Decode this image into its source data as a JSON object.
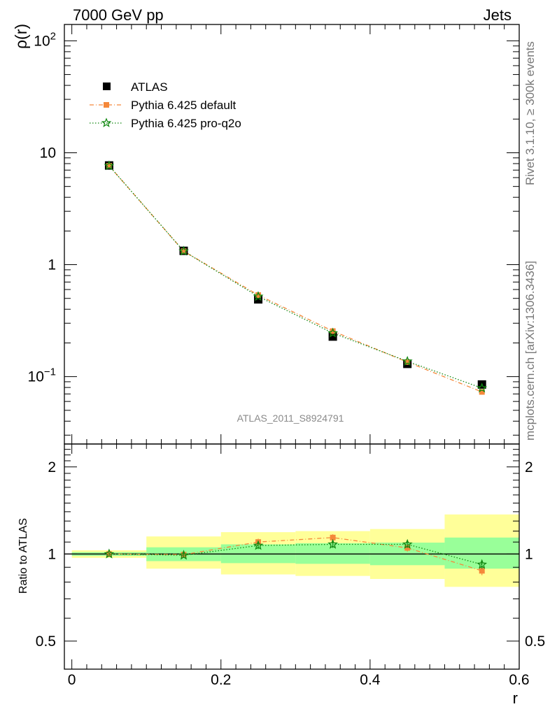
{
  "header": {
    "left_title": "7000 GeV pp",
    "right_title": "Jets"
  },
  "side_labels": {
    "rivet": "Rivet 3.1.10, ≥ 300k events",
    "mcplots": "mcplots.cern.ch [arXiv:1306.3436]"
  },
  "watermark": "ATLAS_2011_S8924791",
  "legend": {
    "items": [
      {
        "label": "ATLAS",
        "marker": "square",
        "color": "#000000"
      },
      {
        "label": "Pythia 6.425 default",
        "marker": "square-dashdot",
        "color": "#f5883a"
      },
      {
        "label": "Pythia 6.425 pro-q2o",
        "marker": "star-dotted",
        "color": "#118811"
      }
    ]
  },
  "axes": {
    "main_ylabel": "ρ(r)",
    "ratio_ylabel": "Ratio to ATLAS",
    "xlabel": "r",
    "main_yticks": [
      {
        "base": "10",
        "exp": "−1"
      },
      {
        "base": "1",
        "exp": ""
      },
      {
        "base": "10",
        "exp": ""
      },
      {
        "base": "10",
        "exp": "2"
      }
    ],
    "ratio_yticks": [
      "0.5",
      "1",
      "2"
    ],
    "xticks": [
      "0",
      "0.2",
      "0.4",
      "0.6"
    ]
  },
  "chart_data": [
    {
      "type": "scatter",
      "panel": "main",
      "title": "",
      "xlabel": "r",
      "ylabel": "ρ(r)",
      "xlim": [
        -0.01,
        0.6
      ],
      "ylim": [
        0.025,
        140
      ],
      "yscale": "log",
      "x": [
        0.05,
        0.15,
        0.25,
        0.35,
        0.45,
        0.55
      ],
      "series": [
        {
          "name": "ATLAS",
          "color": "#000000",
          "values": [
            7.7,
            1.33,
            0.49,
            0.228,
            0.13,
            0.085
          ]
        },
        {
          "name": "Pythia 6.425 default",
          "color": "#f5883a",
          "values": [
            7.65,
            1.32,
            0.535,
            0.255,
            0.135,
            0.073
          ]
        },
        {
          "name": "Pythia 6.425 pro-q2o",
          "color": "#118811",
          "values": [
            7.65,
            1.32,
            0.52,
            0.245,
            0.137,
            0.079
          ]
        }
      ]
    },
    {
      "type": "scatter",
      "panel": "ratio",
      "title": "",
      "xlabel": "r",
      "ylabel": "Ratio to ATLAS",
      "xlim": [
        -0.01,
        0.6
      ],
      "ylim": [
        0.4,
        2.4
      ],
      "yscale": "log",
      "bins": [
        [
          0.0,
          0.1
        ],
        [
          0.1,
          0.2
        ],
        [
          0.2,
          0.3
        ],
        [
          0.3,
          0.4
        ],
        [
          0.4,
          0.5
        ],
        [
          0.5,
          0.6
        ]
      ],
      "band_stat": [
        [
          0.985,
          1.015
        ],
        [
          0.945,
          1.055
        ],
        [
          0.93,
          1.08
        ],
        [
          0.925,
          1.09
        ],
        [
          0.915,
          1.095
        ],
        [
          0.89,
          1.14
        ]
      ],
      "band_total": [
        [
          0.97,
          1.03
        ],
        [
          0.89,
          1.15
        ],
        [
          0.85,
          1.19
        ],
        [
          0.84,
          1.2
        ],
        [
          0.82,
          1.22
        ],
        [
          0.77,
          1.37
        ]
      ],
      "x": [
        0.05,
        0.15,
        0.25,
        0.35,
        0.45,
        0.55
      ],
      "series": [
        {
          "name": "Pythia 6.425 default",
          "color": "#f5883a",
          "values": [
            1.0,
            0.995,
            1.1,
            1.14,
            1.05,
            0.875
          ],
          "errors": [
            0.01,
            0.02,
            0.03,
            0.03,
            0.03,
            0.03
          ]
        },
        {
          "name": "Pythia 6.425 pro-q2o",
          "color": "#118811",
          "values": [
            1.0,
            0.99,
            1.07,
            1.08,
            1.08,
            0.92
          ],
          "errors": [
            0.01,
            0.02,
            0.03,
            0.03,
            0.03,
            0.03
          ]
        }
      ]
    }
  ]
}
